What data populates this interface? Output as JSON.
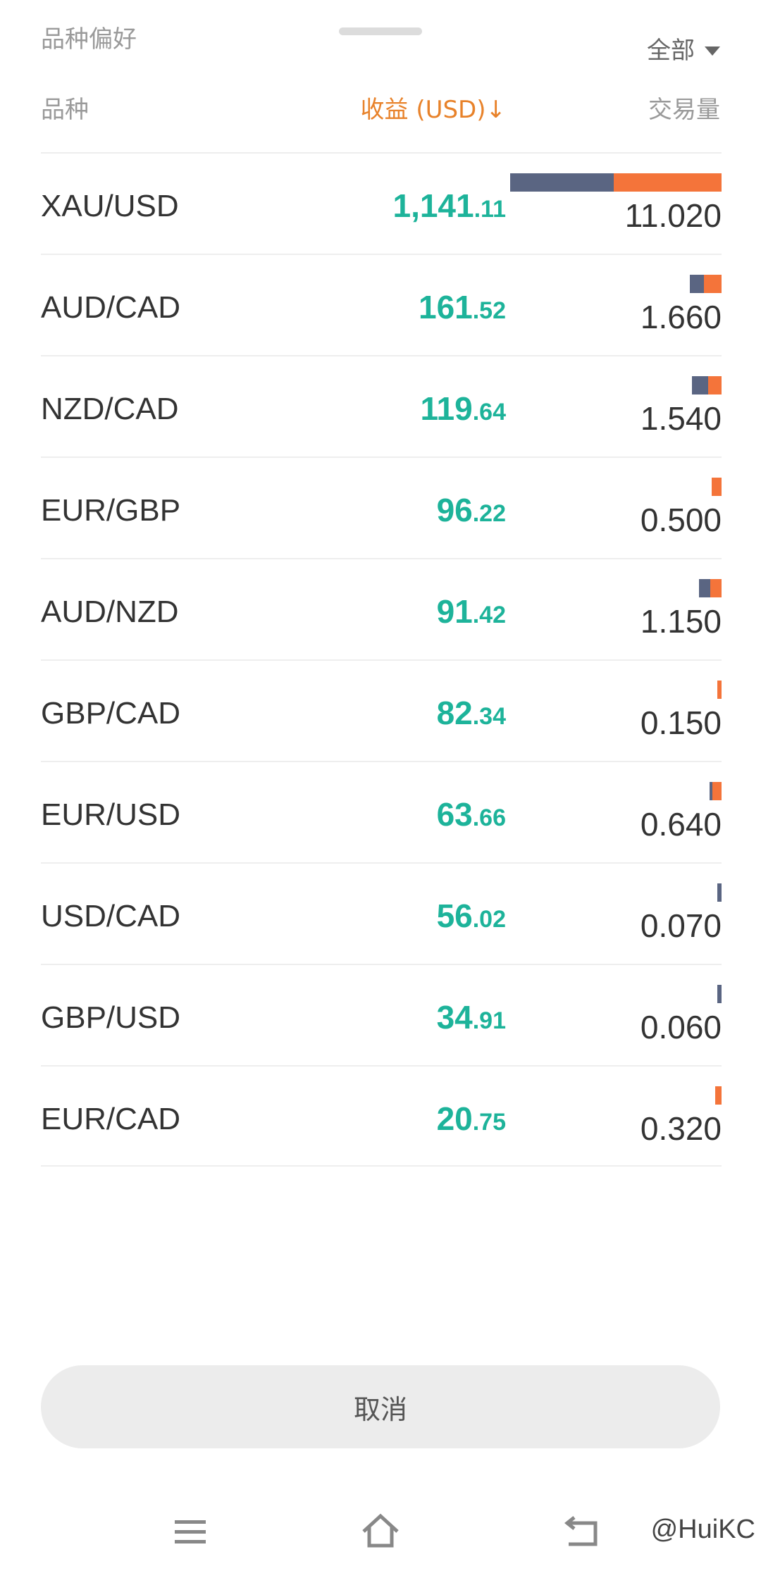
{
  "header": {
    "title": "品种偏好",
    "filter_label": "全部",
    "columns": {
      "symbol": "品种",
      "profit": "收益 (USD)↓",
      "volume": "交易量"
    }
  },
  "colors": {
    "profit_green": "#1db39a",
    "sort_orange": "#e8822a",
    "bar_buy": "#5a6582",
    "bar_sell": "#f4743a"
  },
  "rows": [
    {
      "symbol": "XAU/USD",
      "profit_int": "1,141",
      "profit_dec": ".11",
      "volume": "11.020",
      "buy_share": 0.49,
      "sell_share": 0.51
    },
    {
      "symbol": "AUD/CAD",
      "profit_int": "161",
      "profit_dec": ".52",
      "volume": "1.660",
      "buy_share": 0.45,
      "sell_share": 0.55
    },
    {
      "symbol": "NZD/CAD",
      "profit_int": "119",
      "profit_dec": ".64",
      "volume": "1.540",
      "buy_share": 0.55,
      "sell_share": 0.45
    },
    {
      "symbol": "EUR/GBP",
      "profit_int": "96",
      "profit_dec": ".22",
      "volume": "0.500",
      "buy_share": 0.0,
      "sell_share": 1.0
    },
    {
      "symbol": "AUD/NZD",
      "profit_int": "91",
      "profit_dec": ".42",
      "volume": "1.150",
      "buy_share": 0.5,
      "sell_share": 0.5
    },
    {
      "symbol": "GBP/CAD",
      "profit_int": "82",
      "profit_dec": ".34",
      "volume": "0.150",
      "buy_share": 0.0,
      "sell_share": 1.0
    },
    {
      "symbol": "EUR/USD",
      "profit_int": "63",
      "profit_dec": ".66",
      "volume": "0.640",
      "buy_share": 0.25,
      "sell_share": 0.75
    },
    {
      "symbol": "USD/CAD",
      "profit_int": "56",
      "profit_dec": ".02",
      "volume": "0.070",
      "buy_share": 1.0,
      "sell_share": 0.0
    },
    {
      "symbol": "GBP/USD",
      "profit_int": "34",
      "profit_dec": ".91",
      "volume": "0.060",
      "buy_share": 1.0,
      "sell_share": 0.0
    },
    {
      "symbol": "EUR/CAD",
      "profit_int": "20",
      "profit_dec": ".75",
      "volume": "0.320",
      "buy_share": 0.0,
      "sell_share": 1.0
    }
  ],
  "cancel_label": "取消",
  "navbar": {
    "icons": [
      "menu-icon",
      "home-icon",
      "back-icon"
    ]
  },
  "watermark": "@HuiKC"
}
